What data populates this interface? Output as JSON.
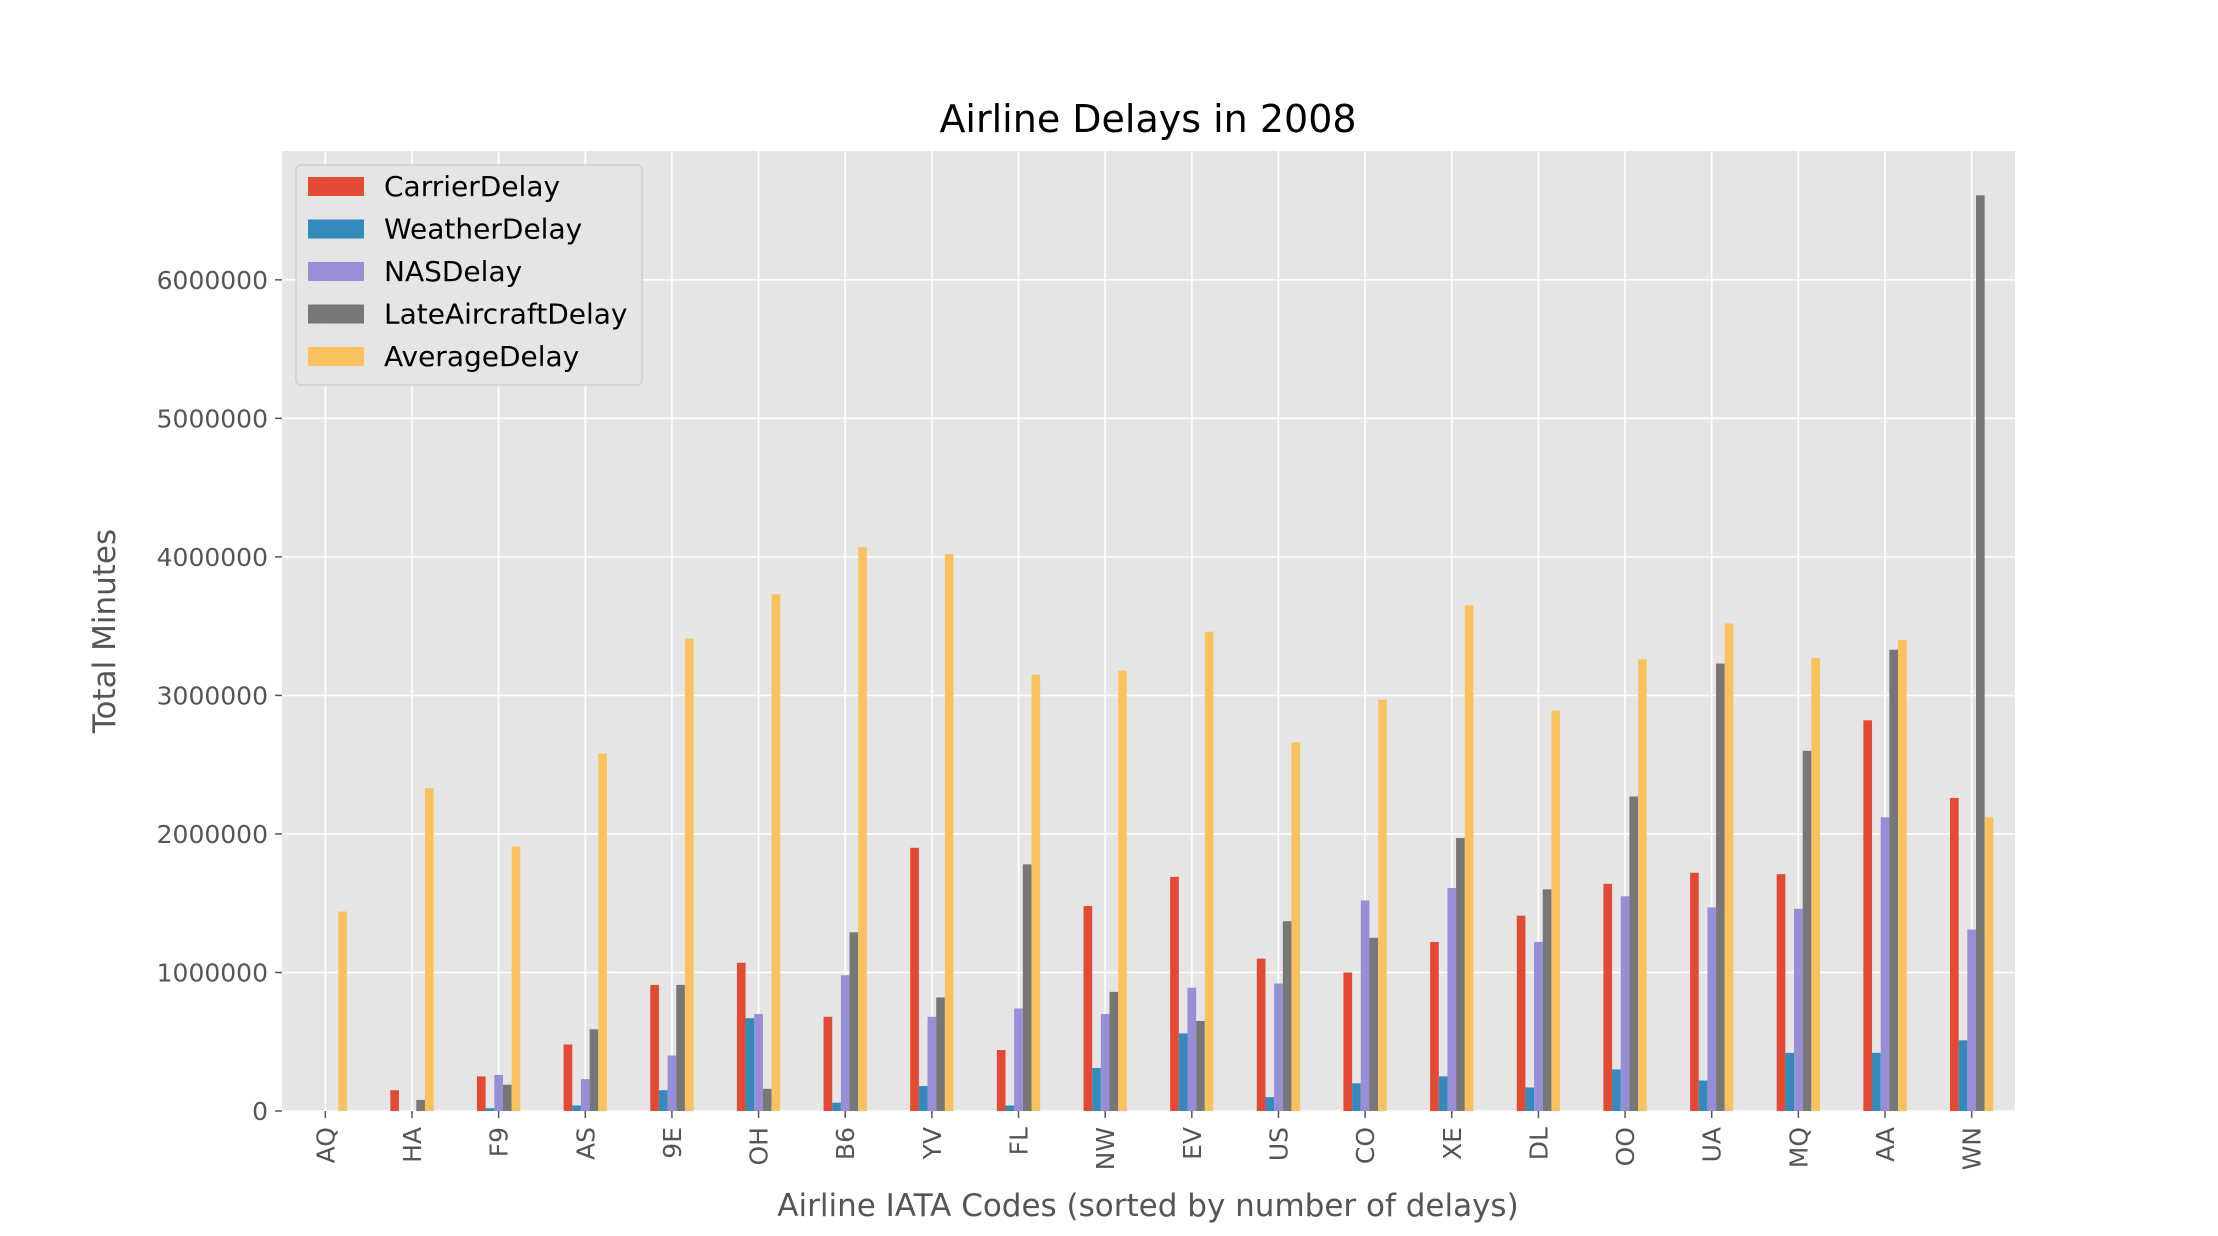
{
  "chart_data": {
    "type": "bar",
    "title": "Airline Delays in 2008",
    "xlabel": "Airline IATA Codes (sorted by number of delays)",
    "ylabel": "Total Minutes",
    "categories": [
      "AQ",
      "HA",
      "F9",
      "AS",
      "9E",
      "OH",
      "B6",
      "YV",
      "FL",
      "NW",
      "EV",
      "US",
      "CO",
      "XE",
      "DL",
      "OO",
      "UA",
      "MQ",
      "AA",
      "WN"
    ],
    "series": [
      {
        "name": "CarrierDelay",
        "color": "#E24A33",
        "values": [
          0,
          150000,
          250000,
          480000,
          910000,
          1070000,
          680000,
          1900000,
          440000,
          1480000,
          1690000,
          1100000,
          1000000,
          1220000,
          1410000,
          1640000,
          1720000,
          1710000,
          2820000,
          2260000
        ]
      },
      {
        "name": "WeatherDelay",
        "color": "#348ABD",
        "values": [
          0,
          0,
          20000,
          40000,
          150000,
          670000,
          60000,
          180000,
          40000,
          310000,
          560000,
          100000,
          200000,
          250000,
          170000,
          300000,
          220000,
          420000,
          420000,
          510000
        ]
      },
      {
        "name": "NASDelay",
        "color": "#988ED5",
        "values": [
          0,
          0,
          260000,
          230000,
          400000,
          700000,
          980000,
          680000,
          740000,
          700000,
          890000,
          920000,
          1520000,
          1610000,
          1220000,
          1550000,
          1470000,
          1460000,
          2120000,
          1310000
        ]
      },
      {
        "name": "LateAircraftDelay",
        "color": "#777777",
        "values": [
          0,
          80000,
          190000,
          590000,
          910000,
          160000,
          1290000,
          820000,
          1780000,
          860000,
          650000,
          1370000,
          1250000,
          1970000,
          1600000,
          2270000,
          3230000,
          2600000,
          3330000,
          6610000
        ]
      },
      {
        "name": "AverageDelay",
        "color": "#FBC15E",
        "values": [
          1440000,
          2330000,
          1910000,
          2580000,
          3410000,
          3730000,
          4070000,
          4020000,
          3150000,
          3180000,
          3460000,
          2660000,
          2970000,
          3650000,
          2890000,
          3260000,
          3520000,
          3270000,
          3400000,
          2120000
        ]
      }
    ],
    "ylim": [
      0,
      6930000
    ],
    "yticks": [
      0,
      1000000,
      2000000,
      3000000,
      4000000,
      5000000,
      6000000
    ],
    "ytick_labels": [
      "0",
      "1000000",
      "2000000",
      "3000000",
      "4000000",
      "5000000",
      "6000000"
    ],
    "grid": true,
    "legend_position": "top-left",
    "style": {
      "background": "#E5E5E5",
      "grid_color": "#FFFFFF"
    }
  }
}
